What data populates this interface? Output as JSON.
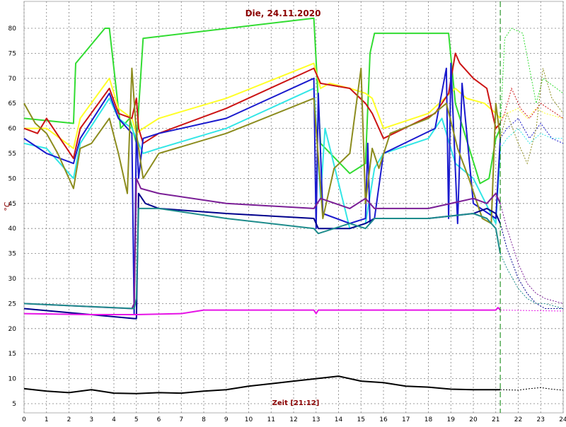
{
  "chart_data": {
    "type": "line",
    "title": "Die, 24.11.2020",
    "xlabel": "Zeit [21:12]",
    "ylabel": "°C",
    "xlim": [
      0,
      24
    ],
    "ylim": [
      5,
      85
    ],
    "xticks": [
      "0",
      "1",
      "2",
      "3",
      "4",
      "5",
      "6",
      "7",
      "8",
      "9",
      "10",
      "11",
      "12",
      "13",
      "14",
      "15",
      "16",
      "17",
      "18",
      "19",
      "20",
      "21",
      "22",
      "23",
      "24"
    ],
    "yticks": [
      "5",
      "10",
      "15",
      "20",
      "25",
      "30",
      "35",
      "40",
      "45",
      "50",
      "55",
      "60",
      "65",
      "70",
      "75",
      "80"
    ],
    "grid": true,
    "current_time": 21.2,
    "colors": {
      "title": "#8b0000",
      "zeit": "#8b0000",
      "ylabel": "#8b0000",
      "now_line": "#008000",
      "grid": "#7f7f7f"
    },
    "series": [
      {
        "color": "#32dc32",
        "x": [
          0,
          2.2,
          2.3,
          3.6,
          3.8,
          4.3,
          4.7,
          5.0,
          5.3,
          12.9,
          13.2,
          14.5,
          15.2,
          15.4,
          15.6,
          18.9,
          19.2,
          20.3,
          20.7,
          21.0,
          21.2,
          21.4,
          21.7,
          22.2,
          22.8,
          23.1,
          24
        ],
        "y": [
          62,
          61,
          73,
          80,
          80,
          60,
          62,
          57,
          78,
          82,
          57,
          51,
          53,
          75,
          79,
          79,
          65,
          49,
          50,
          58,
          60,
          78,
          80,
          79,
          65,
          70,
          67
        ]
      },
      {
        "color": "#ffff28",
        "x": [
          0,
          1,
          2.2,
          2.5,
          3.8,
          4.2,
          4.8,
          5.0,
          5.3,
          6,
          9,
          12.9,
          13.2,
          13.6,
          14.5,
          15.2,
          15.5,
          16,
          18,
          19.2,
          19.7,
          20.5,
          21,
          21.2,
          21.5,
          22,
          22.4,
          22.8,
          23.2,
          24
        ],
        "y": [
          60,
          60,
          56,
          62,
          70,
          64,
          62,
          59,
          60,
          62,
          66,
          73,
          68,
          69,
          68,
          67,
          66,
          60,
          63,
          68,
          66,
          65,
          63,
          62,
          63,
          64,
          62,
          64,
          63,
          62
        ]
      },
      {
        "color": "#cc1414",
        "x": [
          0,
          0.6,
          1,
          2.2,
          2.5,
          3.8,
          4.2,
          4.8,
          5.0,
          5.1,
          5.3,
          6,
          9,
          12.9,
          13.2,
          14.5,
          15.2,
          15.5,
          16,
          18.3,
          18.9,
          19.2,
          19.4,
          20.0,
          20.6,
          21,
          21.2,
          21.4,
          21.7,
          22.1,
          22.5,
          23,
          24
        ],
        "y": [
          60,
          59,
          62,
          54,
          60,
          68,
          63,
          62,
          66,
          60,
          57,
          59,
          64,
          72,
          69,
          68,
          65,
          63,
          58,
          63,
          67,
          75,
          73,
          70,
          68,
          60,
          61,
          63,
          68,
          64,
          62,
          65,
          62
        ]
      },
      {
        "color": "#32e6e6",
        "x": [
          0,
          1,
          2.2,
          2.5,
          3.8,
          4.2,
          4.8,
          5.0,
          5.3,
          6,
          9,
          12.9,
          13.2,
          13.4,
          14.5,
          15.2,
          15.6,
          16,
          18,
          18.6,
          19.2,
          20,
          21,
          21.2,
          21.5,
          22,
          22.5,
          23,
          23.5,
          24
        ],
        "y": [
          57,
          56,
          50,
          57,
          66,
          62,
          60,
          58,
          55,
          56,
          60,
          68,
          46,
          60,
          40,
          41,
          52,
          55,
          58,
          62,
          53,
          50,
          41,
          56,
          58,
          60,
          57,
          59,
          58,
          58
        ]
      },
      {
        "color": "#1a1acd",
        "x": [
          0,
          1,
          2.2,
          2.5,
          3.8,
          4.2,
          4.8,
          4.9,
          5.0,
          5.1,
          5.3,
          6,
          9,
          12.9,
          13.0,
          13.1,
          13.3,
          14.5,
          15.2,
          15.3,
          15.4,
          15.6,
          16,
          18.3,
          18.8,
          18.9,
          19.0,
          19.3,
          19.5,
          20,
          21,
          21.2,
          21.5,
          22,
          22.5,
          23,
          23.5,
          24
        ],
        "y": [
          58,
          55,
          53,
          58,
          67,
          62,
          59,
          23,
          60,
          50,
          58,
          59,
          62,
          70,
          40,
          67,
          43,
          41,
          42,
          57,
          41,
          42,
          55,
          60,
          72,
          42,
          73,
          41,
          69,
          45,
          42,
          58,
          60,
          62,
          58,
          61,
          58,
          57
        ]
      },
      {
        "color": "#8c8c1e",
        "x": [
          0,
          0.5,
          1,
          1.5,
          2.2,
          2.5,
          3,
          3.8,
          4.2,
          4.6,
          4.8,
          5.0,
          5.3,
          6,
          9,
          12.9,
          13.3,
          13.8,
          14.5,
          15.0,
          15.2,
          15.5,
          15.8,
          16.3,
          18,
          18.8,
          19.3,
          19.8,
          20.4,
          20.8,
          21,
          21.2,
          21.5,
          22,
          22.4,
          22.8,
          23.1,
          23.5,
          24
        ],
        "y": [
          65,
          61,
          59,
          55,
          48,
          56,
          57,
          62,
          55,
          47,
          72,
          59,
          50,
          55,
          59,
          66,
          42,
          52,
          55,
          72,
          45,
          56,
          52,
          59,
          62,
          65,
          56,
          50,
          42,
          41,
          65,
          58,
          63,
          57,
          53,
          60,
          72,
          66,
          63
        ]
      },
      {
        "color": "#7a1e96",
        "x": [
          0,
          4.8,
          4.9,
          5.0,
          5.2,
          6,
          9,
          12.9,
          13.2,
          14.5,
          15.2,
          15.6,
          18,
          20,
          20.6,
          21,
          21.2,
          21.5,
          22,
          22.4,
          22.8,
          23.2,
          24
        ],
        "y": [
          25,
          24,
          25,
          50,
          48,
          47,
          45,
          44,
          46,
          44,
          46,
          44,
          44,
          46,
          45,
          47,
          45,
          40,
          33,
          29,
          27,
          26,
          25
        ]
      },
      {
        "color": "#00008c",
        "x": [
          0,
          4.9,
          5.0,
          5.1,
          5.4,
          6,
          9,
          12.9,
          13.1,
          14.5,
          15.2,
          15.6,
          18,
          20,
          20.6,
          21,
          21.2,
          21.5,
          22,
          22.4,
          22.8,
          23.2,
          24
        ],
        "y": [
          24,
          22,
          22,
          47,
          45,
          44,
          43,
          42,
          40,
          40,
          41,
          42,
          42,
          43,
          44,
          43,
          41,
          36,
          30,
          27,
          25,
          24,
          24
        ]
      },
      {
        "color": "#1e8c8c",
        "x": [
          0,
          4.9,
          5.0,
          5.1,
          5.5,
          6,
          9,
          12.9,
          13.1,
          14.5,
          15.2,
          15.6,
          18,
          20,
          20.6,
          21,
          21.2,
          21.5,
          22,
          22.4,
          22.8,
          23.2,
          24
        ],
        "y": [
          25,
          24,
          26,
          44,
          44,
          44,
          42,
          40,
          39,
          41,
          40,
          42,
          42,
          43,
          42,
          40,
          35,
          32,
          28,
          26,
          25,
          25,
          24
        ]
      },
      {
        "color": "#e614e6",
        "x": [
          0,
          3,
          5,
          7,
          8,
          12.9,
          13.0,
          13.1,
          21,
          21.1,
          21.2,
          24
        ],
        "y": [
          23,
          22.8,
          22.8,
          23,
          23.7,
          23.7,
          23,
          23.7,
          23.7,
          24.2,
          23.7,
          23.5
        ]
      },
      {
        "color": "#000000",
        "x": [
          0,
          1,
          2,
          3,
          4,
          5,
          6,
          7,
          8,
          9,
          10,
          11,
          12,
          13,
          14,
          14.3,
          15,
          16,
          17,
          18,
          19,
          20,
          21,
          21.2,
          22,
          22.5,
          23,
          23.5,
          24
        ],
        "y": [
          8,
          7.5,
          7.2,
          7.8,
          7.1,
          7,
          7.2,
          7.1,
          7.5,
          7.8,
          8.5,
          9,
          9.5,
          10,
          10.5,
          10.2,
          9.5,
          9.2,
          8.5,
          8.3,
          7.9,
          7.8,
          7.8,
          7.8,
          7.7,
          8.0,
          8.2,
          7.9,
          7.7
        ]
      }
    ]
  }
}
